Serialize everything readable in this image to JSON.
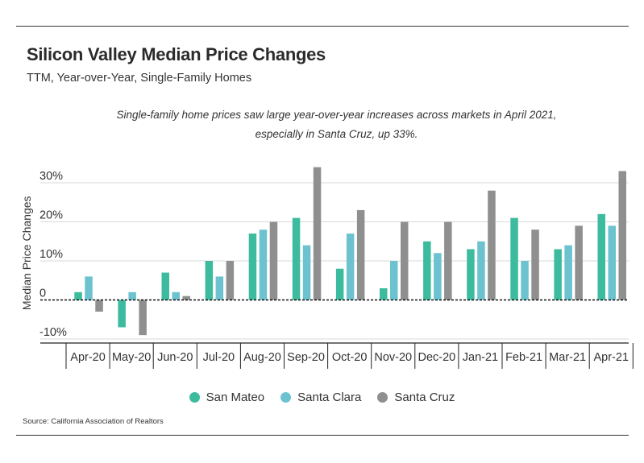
{
  "header": {
    "title": "Silicon Valley Median Price Changes",
    "subtitle": "TTM, Year-over-Year, Single-Family Homes"
  },
  "annotation": {
    "line1": "Single-family home prices saw large year-over-year increases across markets in April 2021,",
    "line2": "especially in Santa Cruz, up 33%."
  },
  "source": "Source:  California Association of Realtors",
  "colors": {
    "san_mateo": "#3dbb9e",
    "santa_clara": "#6cc3cf",
    "santa_cruz": "#8f8f8f"
  },
  "chart_data": {
    "type": "bar",
    "ylabel": "Median Price Changes",
    "ylim": [
      -11,
      35
    ],
    "yticks": [
      {
        "value": 30,
        "label": "30%"
      },
      {
        "value": 20,
        "label": "20%"
      },
      {
        "value": 10,
        "label": "10%"
      },
      {
        "value": 0,
        "label": "0"
      },
      {
        "value": -10,
        "label": "-10%"
      }
    ],
    "grid": true,
    "legend_position": "bottom",
    "categories": [
      "Apr-20",
      "May-20",
      "Jun-20",
      "Jul-20",
      "Aug-20",
      "Sep-20",
      "Oct-20",
      "Nov-20",
      "Dec-20",
      "Jan-21",
      "Feb-21",
      "Mar-21",
      "Apr-21"
    ],
    "series": [
      {
        "name": "San Mateo",
        "color": "#3dbb9e",
        "values": [
          2,
          -7,
          7,
          10,
          17,
          21,
          8,
          3,
          15,
          13,
          21,
          13,
          22
        ]
      },
      {
        "name": "Santa Clara",
        "color": "#6cc3cf",
        "values": [
          6,
          2,
          2,
          6,
          18,
          14,
          17,
          10,
          12,
          15,
          10,
          14,
          19
        ]
      },
      {
        "name": "Santa Cruz",
        "color": "#8f8f8f",
        "values": [
          -3,
          -9,
          1,
          10,
          20,
          34,
          23,
          20,
          20,
          28,
          18,
          19,
          33
        ]
      }
    ]
  }
}
